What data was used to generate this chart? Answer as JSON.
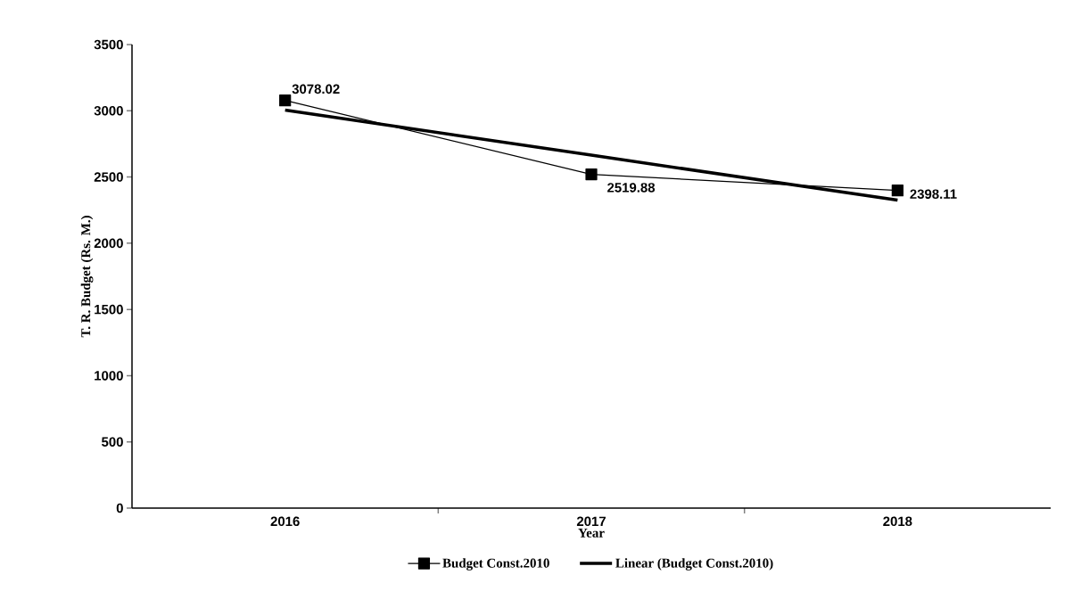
{
  "chart_data": {
    "type": "line",
    "xlabel": "Year",
    "ylabel": "T. R. Budget (Rs. M.)",
    "categories": [
      "2016",
      "2017",
      "2018"
    ],
    "series": [
      {
        "name": "Budget Const.2010",
        "color": "#000000",
        "values": [
          3078.02,
          2519.88,
          2398.11
        ],
        "value_labels": [
          "3078.02",
          "2519.88",
          "2398.11"
        ],
        "marker": "square",
        "line_style": "solid"
      },
      {
        "name": "Linear (Budget Const.2010)",
        "color": "#000000",
        "values": [
          3005,
          2665,
          2325
        ],
        "marker": "none",
        "line_style": "solid"
      }
    ],
    "ylim": [
      0,
      3500
    ],
    "yticks": [
      0,
      500,
      1000,
      1500,
      2000,
      2500,
      3000,
      3500
    ],
    "grid": false,
    "legend": "bottom"
  }
}
